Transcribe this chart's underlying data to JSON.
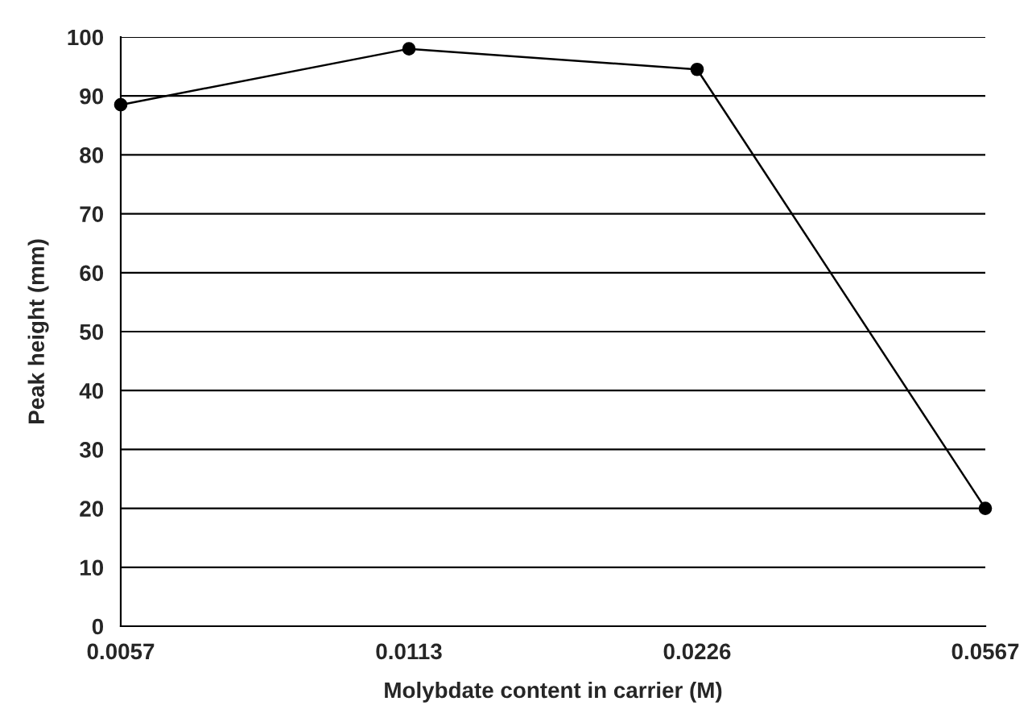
{
  "chart_data": {
    "type": "line",
    "xlabel": "Molybdate content in carrier (M)",
    "ylabel": "Peak height (mm)",
    "categories": [
      "0.0057",
      "0.0113",
      "0.0226",
      "0.0567"
    ],
    "series": [
      {
        "color": "#000000",
        "values": [
          88.5,
          98,
          94.5,
          20
        ]
      }
    ],
    "ylim": [
      0,
      100
    ],
    "yticks": [
      0,
      10,
      20,
      30,
      40,
      50,
      60,
      70,
      80,
      90,
      100
    ],
    "grid": "y",
    "marker": "circle",
    "line_style": "solid",
    "legend": false
  }
}
